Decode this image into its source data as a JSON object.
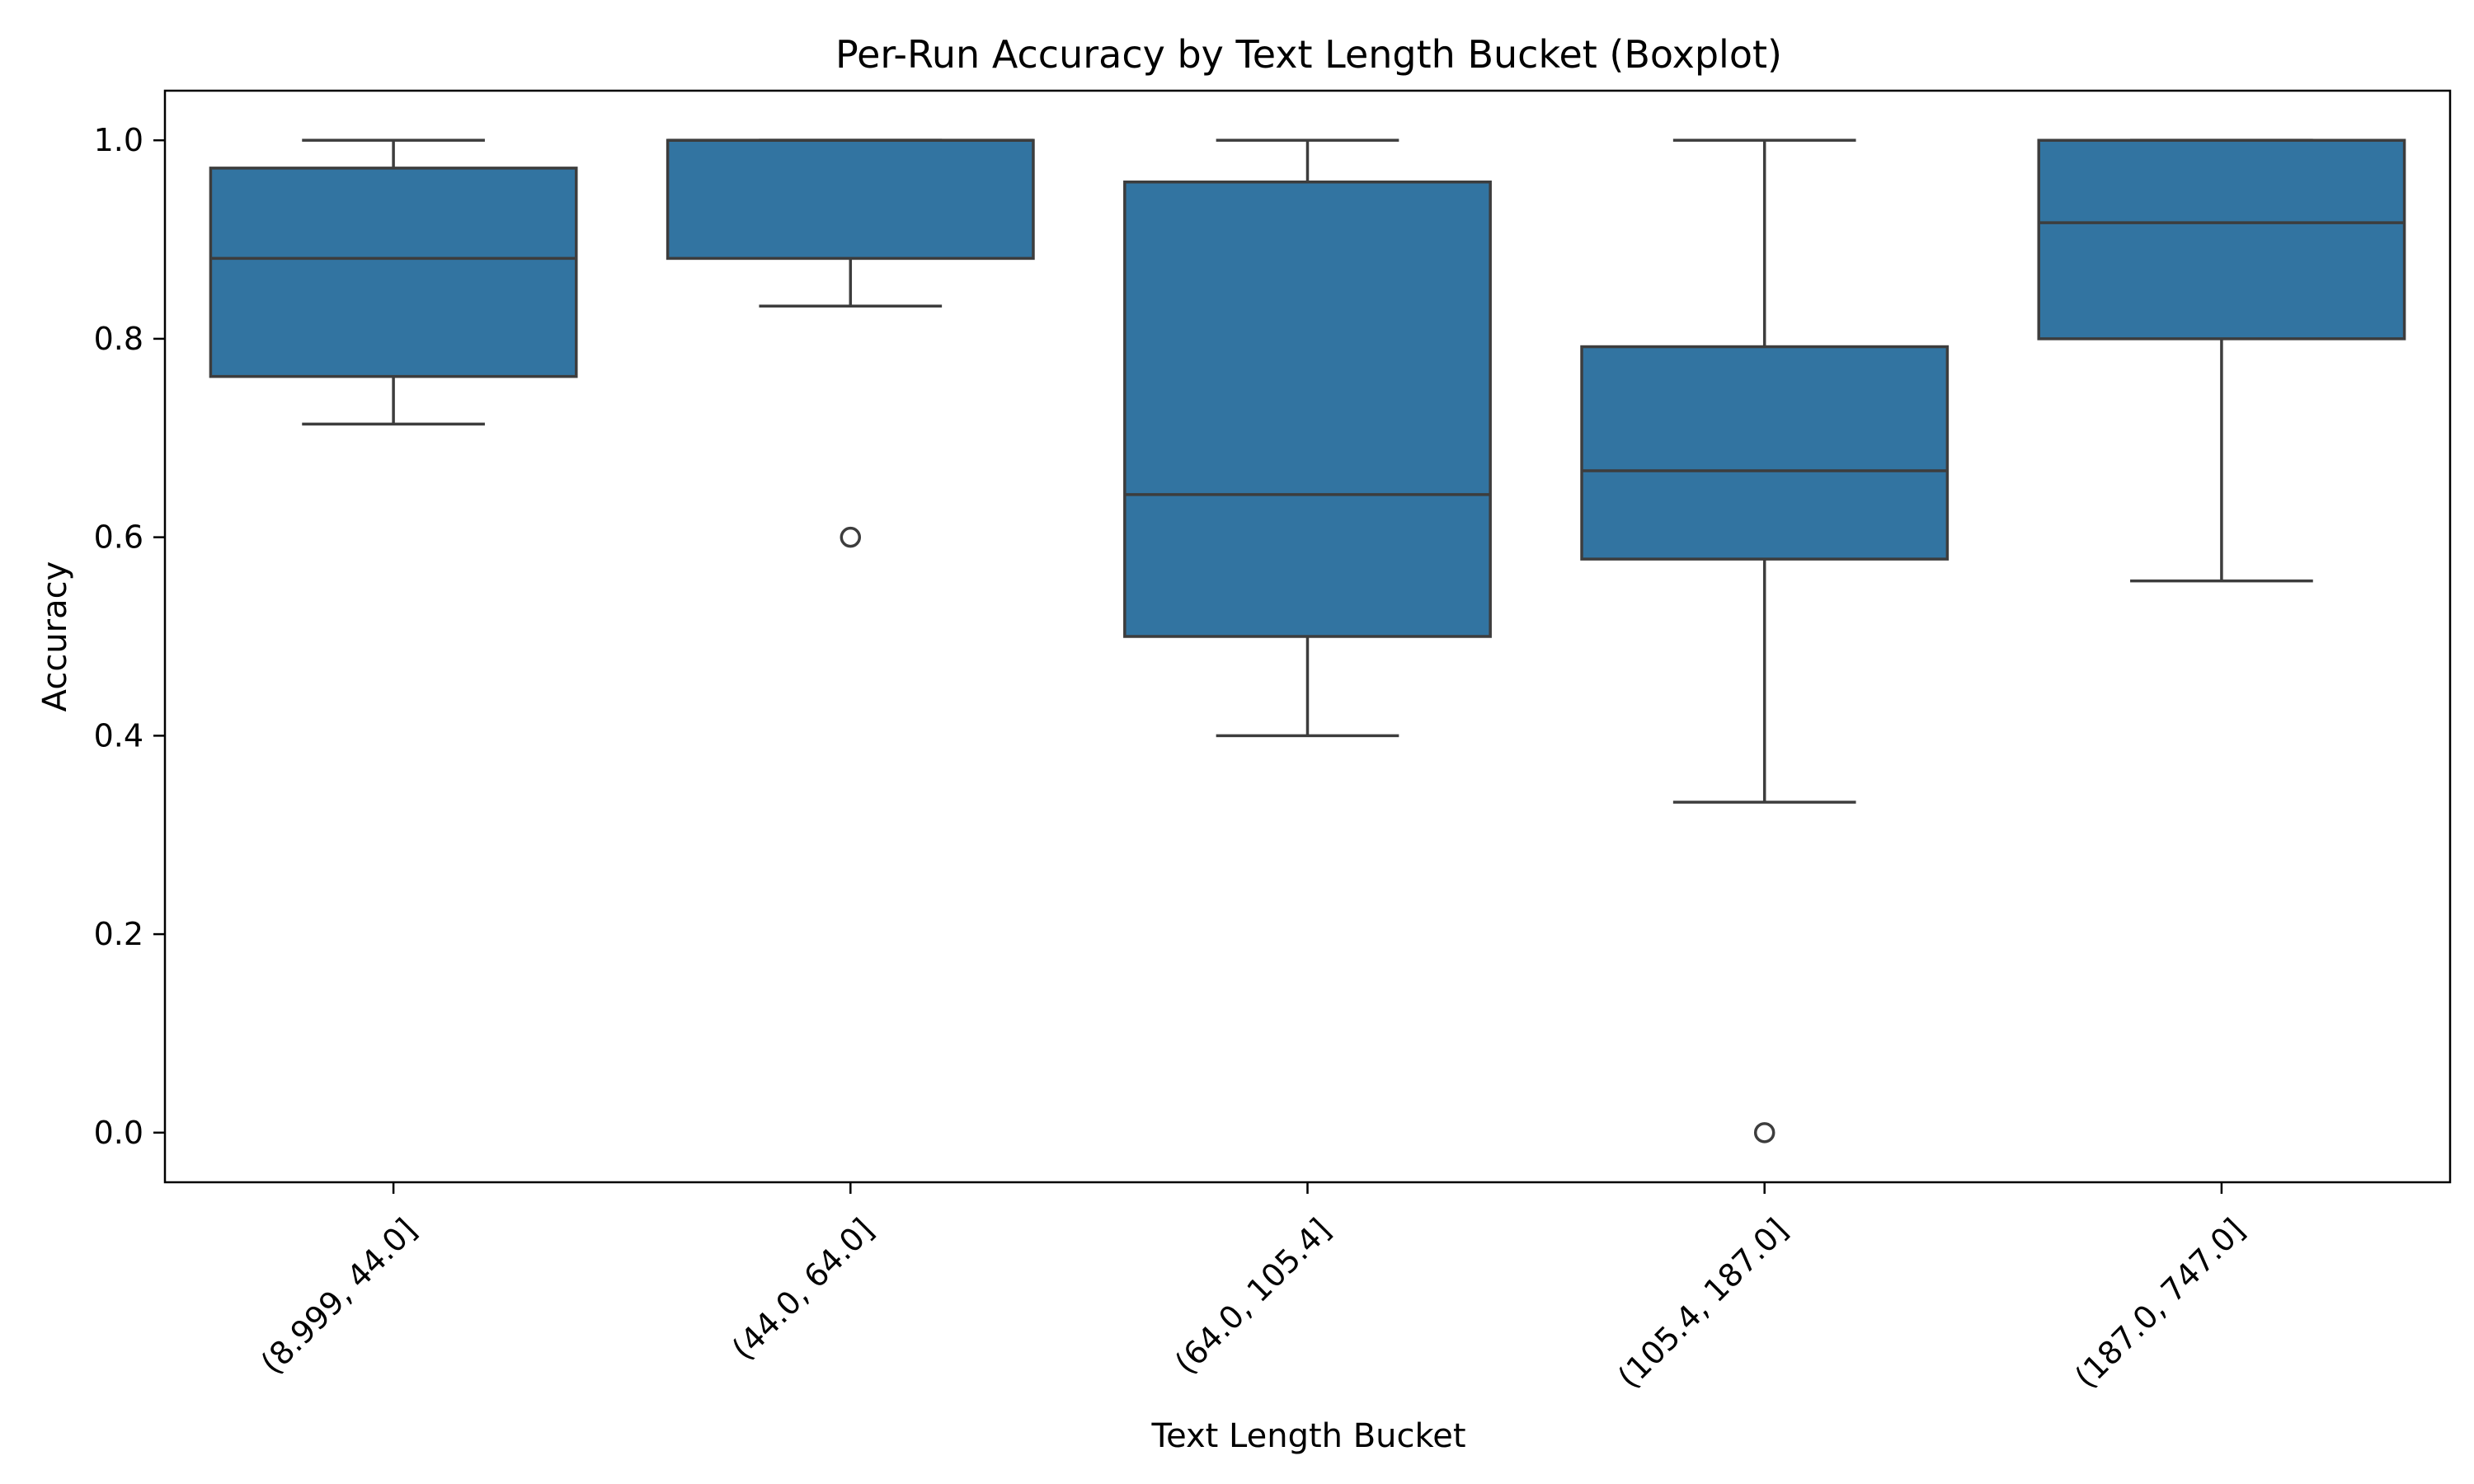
{
  "chart_data": {
    "type": "boxplot",
    "title": "Per-Run Accuracy by Text Length Bucket (Boxplot)",
    "xlabel": "Text Length Bucket",
    "ylabel": "Accuracy",
    "ylim": [
      -0.05,
      1.05
    ],
    "yticks": [
      0.0,
      0.2,
      0.4,
      0.6,
      0.8,
      1.0
    ],
    "ytick_labels": [
      "0.0",
      "0.2",
      "0.4",
      "0.6",
      "0.8",
      "1.0"
    ],
    "grid": false,
    "box_color": "#3274a1",
    "line_color": "#3d3d3d",
    "categories": [
      "(8.999, 44.0]",
      "(44.0, 64.0]",
      "(64.0, 105.4]",
      "(105.4, 187.0]",
      "(187.0, 747.0]"
    ],
    "boxes": [
      {
        "category": "(8.999, 44.0]",
        "whisker_low": 0.714,
        "q1": 0.762,
        "median": 0.881,
        "q3": 0.972,
        "whisker_high": 1.0,
        "outliers": []
      },
      {
        "category": "(44.0, 64.0]",
        "whisker_low": 0.833,
        "q1": 0.881,
        "median": 1.0,
        "q3": 1.0,
        "whisker_high": 1.0,
        "outliers": [
          0.6
        ]
      },
      {
        "category": "(64.0, 105.4]",
        "whisker_low": 0.4,
        "q1": 0.5,
        "median": 0.643,
        "q3": 0.958,
        "whisker_high": 1.0,
        "outliers": []
      },
      {
        "category": "(105.4, 187.0]",
        "whisker_low": 0.333,
        "q1": 0.578,
        "median": 0.667,
        "q3": 0.792,
        "whisker_high": 1.0,
        "outliers": [
          0.0
        ]
      },
      {
        "category": "(187.0, 747.0]",
        "whisker_low": 0.556,
        "q1": 0.8,
        "median": 0.917,
        "q3": 1.0,
        "whisker_high": 1.0,
        "outliers": []
      }
    ]
  }
}
